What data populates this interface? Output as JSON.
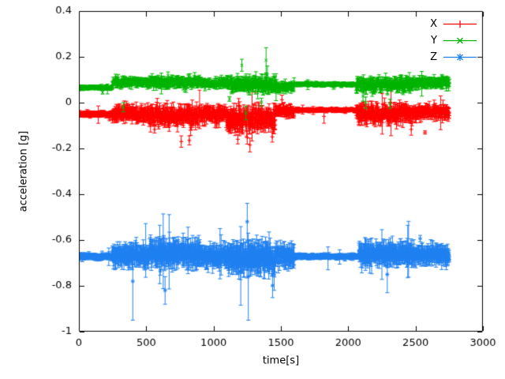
{
  "page": {
    "background": "#ffffff"
  },
  "chart_data": {
    "type": "scatter",
    "subtype": "errorbars-timeseries",
    "title": "",
    "xlabel": "time[s]",
    "ylabel": "acceleration [g]",
    "xlim": [
      0,
      3000
    ],
    "ylim": [
      -1,
      0.4
    ],
    "xtick_values": [
      0,
      500,
      1000,
      1500,
      2000,
      2500,
      3000
    ],
    "xtick_labels": [
      "0",
      "500",
      "1000",
      "1500",
      "2000",
      "2500",
      "3000"
    ],
    "ytick_values": [
      -1,
      -0.8,
      -0.6,
      -0.4,
      -0.2,
      0,
      0.2,
      0.4
    ],
    "ytick_labels": [
      "-1",
      "-0.8",
      "-0.6",
      "-0.4",
      "-0.2",
      "0",
      "0.2",
      "0.4"
    ],
    "grid": false,
    "legend_position": "top-right-inside",
    "sample_step_s": 2,
    "time_range_s": [
      0,
      2750
    ],
    "segment_format": [
      "t_start_s",
      "t_end_s",
      "mean_g",
      "noise_sd_g",
      "errbar_g"
    ],
    "outlier_format": [
      "t_s",
      "value_g",
      "errbar_g"
    ],
    "series": [
      {
        "name": "X",
        "color": "#ff0000",
        "marker": "plus",
        "segments": [
          [
            0,
            250,
            -0.05,
            0.006,
            0.008
          ],
          [
            250,
            520,
            -0.045,
            0.025,
            0.018
          ],
          [
            520,
            900,
            -0.06,
            0.035,
            0.022
          ],
          [
            900,
            1100,
            -0.05,
            0.028,
            0.018
          ],
          [
            1100,
            1460,
            -0.07,
            0.04,
            0.028
          ],
          [
            1460,
            1600,
            -0.04,
            0.02,
            0.014
          ],
          [
            1600,
            2060,
            -0.032,
            0.004,
            0.006
          ],
          [
            2060,
            2480,
            -0.05,
            0.032,
            0.022
          ],
          [
            2480,
            2760,
            -0.042,
            0.022,
            0.016
          ]
        ],
        "outliers": [
          [
            760,
            -0.17,
            0.025
          ],
          [
            820,
            -0.165,
            0.02
          ],
          [
            1180,
            -0.16,
            0.02
          ],
          [
            1270,
            -0.185,
            0.03
          ],
          [
            1310,
            0.075,
            0.03
          ],
          [
            1820,
            -0.06,
            0.03
          ]
        ]
      },
      {
        "name": "Y",
        "color": "#00b400",
        "marker": "cross",
        "segments": [
          [
            0,
            250,
            0.065,
            0.005,
            0.006
          ],
          [
            250,
            520,
            0.09,
            0.014,
            0.011
          ],
          [
            520,
            900,
            0.09,
            0.018,
            0.013
          ],
          [
            900,
            1100,
            0.085,
            0.014,
            0.011
          ],
          [
            1100,
            1460,
            0.078,
            0.024,
            0.018
          ],
          [
            1460,
            1600,
            0.07,
            0.018,
            0.013
          ],
          [
            1600,
            2060,
            0.08,
            0.004,
            0.006
          ],
          [
            2060,
            2480,
            0.078,
            0.022,
            0.016
          ],
          [
            2480,
            2760,
            0.088,
            0.018,
            0.013
          ]
        ],
        "outliers": [
          [
            330,
            -0.02,
            0.02
          ],
          [
            1240,
            -0.045,
            0.03
          ],
          [
            1390,
            0.185,
            0.055
          ],
          [
            1400,
            0.12,
            0.04
          ],
          [
            2130,
            0.0,
            0.025
          ],
          [
            2310,
            -0.005,
            0.02
          ]
        ]
      },
      {
        "name": "Z",
        "color": "#2080f0",
        "marker": "star",
        "segments": [
          [
            0,
            250,
            -0.672,
            0.006,
            0.009
          ],
          [
            250,
            520,
            -0.668,
            0.028,
            0.03
          ],
          [
            520,
            900,
            -0.658,
            0.033,
            0.035
          ],
          [
            900,
            1100,
            -0.668,
            0.028,
            0.03
          ],
          [
            1100,
            1460,
            -0.678,
            0.038,
            0.045
          ],
          [
            1460,
            1600,
            -0.668,
            0.028,
            0.03
          ],
          [
            1600,
            2080,
            -0.672,
            0.005,
            0.008
          ],
          [
            2080,
            2480,
            -0.66,
            0.028,
            0.03
          ],
          [
            2480,
            2760,
            -0.664,
            0.024,
            0.026
          ]
        ],
        "outliers": [
          [
            400,
            -0.78,
            0.17
          ],
          [
            640,
            -0.82,
            0.06
          ],
          [
            1250,
            -0.52,
            0.08
          ],
          [
            1258,
            -0.76,
            0.19
          ],
          [
            1850,
            -0.68,
            0.05
          ],
          [
            2290,
            -0.75,
            0.08
          ]
        ]
      }
    ]
  }
}
